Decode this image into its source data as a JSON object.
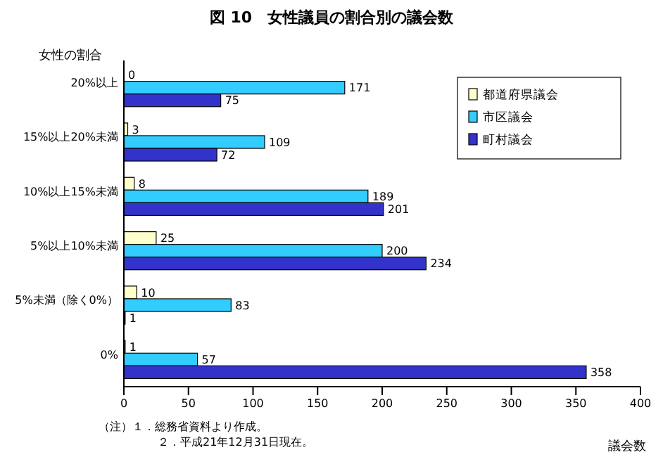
{
  "chart_data": {
    "type": "bar",
    "orientation": "horizontal",
    "title": "図 10　女性議員の割合別の議会数",
    "ylabel": "女性の割合",
    "xlabel": "議会数",
    "categories": [
      "20%以上",
      "15%以上20%未満",
      "10%以上15%未満",
      "5%以上10%未満",
      "5%未満（除く0%）",
      "0%"
    ],
    "series": [
      {
        "name": "都道府県議会",
        "color": "#ffffcc",
        "values": [
          0,
          3,
          8,
          25,
          10,
          1
        ]
      },
      {
        "name": "市区議会",
        "color": "#33ccff",
        "values": [
          171,
          109,
          189,
          200,
          83,
          57
        ]
      },
      {
        "name": "町村議会",
        "color": "#3333cc",
        "values": [
          75,
          72,
          201,
          234,
          1,
          358
        ]
      }
    ],
    "xlim": [
      0,
      400
    ],
    "xticks": [
      0,
      50,
      100,
      150,
      200,
      250,
      300,
      350,
      400
    ],
    "data_labels": true,
    "legend": "top right",
    "annotations": [
      "（注）１．総務省資料より作成。",
      "２．平成21年12月31日現在。"
    ]
  }
}
